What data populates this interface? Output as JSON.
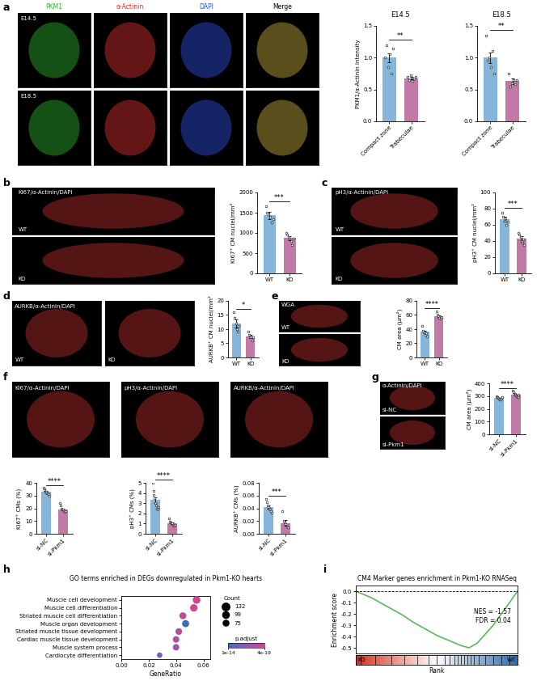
{
  "panel_labels": [
    "a",
    "b",
    "c",
    "d",
    "e",
    "f",
    "g",
    "h",
    "i"
  ],
  "images": [
    {
      "columns": [
        {
          "name": "PKM1",
          "color": "#2fb52f"
        },
        {
          "name": "α-Actinin",
          "color": "#e03030"
        },
        {
          "name": "DAPI",
          "color": "#3050e0"
        },
        {
          "name": "Merge",
          "color": "#000000"
        }
      ],
      "rows": [
        "E14.5",
        "E18.5"
      ]
    },
    {
      "stain": "Ki67/α-Actinin/DAPI",
      "rows": [
        "WT",
        "KO"
      ]
    },
    {
      "stain": "pH3/α-Actinin/DAPI",
      "rows": [
        "WT",
        "KO"
      ]
    },
    {
      "stain": "AURKB/α-Actinin/DAPI",
      "rows": [
        "WT",
        "KO"
      ]
    },
    {
      "stain": "WGA",
      "rows": [
        "WT",
        "KO"
      ]
    },
    {
      "stain": "Ki67/α-Actinin/DAPI"
    },
    {
      "stain": "pH3/α-Actinin/DAPI"
    },
    {
      "stain": "AURKB/α-Actinin/DAPI"
    },
    {
      "stain": "α-Actinin/DAPI",
      "rows": [
        "si-NC",
        "si-Pkm1"
      ]
    }
  ],
  "chart_data": [
    {
      "type": "bar",
      "title": "E14.5",
      "y_label": "PKM1/α-Actinin intensity",
      "categories": [
        "Compact zone",
        "Trabeculae"
      ],
      "values": [
        1.0,
        0.68
      ],
      "errors": [
        0.07,
        0.02
      ],
      "points": [
        [
          1.0,
          1.2,
          0.85,
          1.05,
          0.75,
          1.15
        ],
        [
          0.7,
          0.65,
          0.72,
          0.63,
          0.68,
          0.7
        ]
      ],
      "colors": [
        "#86b5db",
        "#c17aa6"
      ],
      "ylim": [
        0,
        1.5
      ],
      "yticks": [
        {
          "value": 0,
          "label": "0.0"
        },
        {
          "value": 0.5,
          "label": "0.5"
        },
        {
          "value": 1.0,
          "label": "1.0"
        },
        {
          "value": 1.5,
          "label": "1.5"
        }
      ],
      "significance": "**"
    },
    {
      "type": "bar",
      "title": "E18.5",
      "categories": [
        "Compact zone",
        "Trabeculae"
      ],
      "values": [
        1.0,
        0.63
      ],
      "errors": [
        0.08,
        0.04
      ],
      "points": [
        [
          1.35,
          0.95,
          1.0,
          0.85,
          1.1,
          0.75
        ],
        [
          0.75,
          0.55,
          0.6,
          0.65,
          0.58,
          0.65
        ]
      ],
      "colors": [
        "#86b5db",
        "#c17aa6"
      ],
      "ylim": [
        0,
        1.5
      ],
      "yticks": [
        {
          "value": 0,
          "label": "0.0"
        },
        {
          "value": 0.5,
          "label": "0.5"
        },
        {
          "value": 1.0,
          "label": "1.0"
        },
        {
          "value": 1.5,
          "label": "1.5"
        }
      ],
      "significance": "**"
    },
    {
      "type": "bar",
      "y_label": "Ki67⁺ CM nuclei/mm²",
      "categories": [
        "WT",
        "KO"
      ],
      "values": [
        1430,
        870
      ],
      "errors": [
        85,
        45
      ],
      "points": [
        [
          1650,
          1500,
          1450,
          1400,
          1250,
          1330
        ],
        [
          1000,
          950,
          900,
          850,
          800,
          700,
          850
        ]
      ],
      "colors": [
        "#86b5db",
        "#c17aa6"
      ],
      "ylim": [
        0,
        2000
      ],
      "yticks": [
        0,
        500,
        1000,
        1500,
        2000
      ],
      "significance": "***"
    },
    {
      "type": "bar",
      "y_label": "pH3⁺ CM nuclei/mm²",
      "categories": [
        "WT",
        "KO"
      ],
      "values": [
        67,
        43
      ],
      "errors": [
        3,
        2.5
      ],
      "points": [
        [
          75,
          70,
          65,
          68,
          60,
          64
        ],
        [
          50,
          48,
          45,
          40,
          38,
          42,
          35
        ]
      ],
      "colors": [
        "#86b5db",
        "#c17aa6"
      ],
      "ylim": [
        0,
        100
      ],
      "yticks": [
        0,
        20,
        40,
        60,
        80,
        100
      ],
      "significance": "***"
    },
    {
      "type": "bar",
      "y_label": "AURKB⁺ CM nuclei/mm²",
      "categories": [
        "WT",
        "KO"
      ],
      "values": [
        12,
        7.5
      ],
      "errors": [
        1.3,
        0.6
      ],
      "points": [
        [
          16,
          14,
          12,
          10,
          9,
          11
        ],
        [
          9,
          8,
          7.5,
          7,
          6,
          7
        ]
      ],
      "colors": [
        "#86b5db",
        "#c17aa6"
      ],
      "ylim": [
        0,
        20
      ],
      "yticks": [
        0,
        5,
        10,
        15,
        20
      ],
      "significance": "*"
    },
    {
      "type": "bar",
      "y_label": "CM area (μm²)",
      "categories": [
        "WT",
        "KO"
      ],
      "values": [
        36,
        58
      ],
      "errors": [
        2,
        1.8
      ],
      "points": [
        [
          45,
          38,
          35,
          32,
          34,
          30
        ],
        [
          65,
          60,
          58,
          56,
          55,
          57
        ]
      ],
      "colors": [
        "#86b5db",
        "#c17aa6"
      ],
      "ylim": [
        0,
        80
      ],
      "yticks": [
        0,
        20,
        40,
        60,
        80
      ],
      "significance": "****"
    },
    {
      "type": "bar",
      "y_label": "Ki67⁺ CMs (%)",
      "categories": [
        "si-NC",
        "si-Pkm1"
      ],
      "values": [
        33,
        19
      ],
      "errors": [
        0.6,
        0.8
      ],
      "points": [
        [
          36,
          35,
          34,
          33,
          33,
          32,
          32,
          31,
          30
        ],
        [
          24,
          22,
          20,
          19,
          19,
          18,
          17,
          18
        ]
      ],
      "colors": [
        "#86b5db",
        "#c17aa6"
      ],
      "ylim": [
        0,
        40
      ],
      "yticks": [
        0,
        10,
        20,
        30,
        40
      ],
      "significance": "****"
    },
    {
      "type": "bar",
      "y_label": "pH3⁺ CMs (%)",
      "categories": [
        "si-NC",
        "si-Pkm1"
      ],
      "values": [
        3.3,
        1.05
      ],
      "errors": [
        0.3,
        0.07
      ],
      "points": [
        [
          5.0,
          4.2,
          3.8,
          3.5,
          3.0,
          2.8,
          2.5,
          2.4,
          2.6
        ],
        [
          1.5,
          1.2,
          1.1,
          1.0,
          1.0,
          0.9,
          0.8,
          0.9
        ]
      ],
      "colors": [
        "#86b5db",
        "#c17aa6"
      ],
      "ylim": [
        0,
        5
      ],
      "yticks": [
        0,
        1,
        2,
        3,
        4,
        5
      ],
      "significance": "****"
    },
    {
      "type": "bar",
      "y_label": "AURKB⁺ CMs (%)",
      "categories": [
        "si-NC",
        "si-Pkm1"
      ],
      "values": [
        0.042,
        0.017
      ],
      "errors": [
        0.003,
        0.004
      ],
      "points": [
        [
          0.055,
          0.05,
          0.045,
          0.042,
          0.04,
          0.038,
          0.035,
          0.033
        ],
        [
          0.035,
          0.02,
          0.018,
          0.015,
          0.012,
          0.01
        ]
      ],
      "colors": [
        "#86b5db",
        "#c17aa6"
      ],
      "ylim": [
        0,
        0.08
      ],
      "yticks": [
        {
          "value": 0,
          "label": "0.00"
        },
        {
          "value": 0.02,
          "label": "0.02"
        },
        {
          "value": 0.04,
          "label": "0.04"
        },
        {
          "value": 0.06,
          "label": "0.06"
        },
        {
          "value": 0.08,
          "label": "0.08"
        }
      ],
      "significance": "***"
    },
    {
      "type": "bar",
      "y_label": "CM area (μm²)",
      "categories": [
        "si-NC",
        "si-Pkm1"
      ],
      "values": [
        285,
        310
      ],
      "errors": [
        3,
        4
      ],
      "points": [
        [
          300,
          295,
          290,
          285,
          280,
          275,
          270,
          288,
          292
        ],
        [
          340,
          330,
          320,
          315,
          310,
          305,
          300,
          295,
          290,
          312
        ]
      ],
      "colors": [
        "#86b5db",
        "#c17aa6"
      ],
      "ylim": [
        0,
        400
      ],
      "yticks": [
        0,
        100,
        200,
        300,
        400
      ],
      "significance": "****"
    },
    {
      "type": "scatter",
      "title": "GO terms enriched in DEGs downregulated in Pkm1-KO hearts",
      "x_label": "GeneRatio",
      "categories": [
        "Muscle cell development",
        "Muscle cell differentiation",
        "Striated muscle cell differentiation",
        "Muscle organ development",
        "Striated muscle tissue development",
        "Cardiac muscle tissue development",
        "Muscle system process",
        "Cardiocyte differentiation"
      ],
      "values": [
        0.055,
        0.053,
        0.045,
        0.047,
        0.042,
        0.04,
        0.04,
        0.028
      ],
      "counts": [
        132,
        127,
        108,
        113,
        101,
        96,
        96,
        67
      ],
      "p_adjust": [
        4e-19,
        6e-19,
        2e-18,
        1e-14,
        3e-18,
        5e-18,
        2e-17,
        3e-16
      ],
      "xlim": [
        0,
        0.065
      ],
      "xticks": [
        {
          "value": 0,
          "label": "0.00"
        },
        {
          "value": 0.02,
          "label": "0.02"
        },
        {
          "value": 0.04,
          "label": "0.04"
        },
        {
          "value": 0.06,
          "label": "0.06"
        }
      ],
      "size_legend": {
        "title": "Count",
        "values": [
          132,
          99,
          75
        ]
      },
      "color_legend": {
        "title": "p.adjust",
        "range": [
          4e-19,
          1e-14
        ],
        "ticks": [
          {
            "value": 1e-14,
            "label": "1e-14"
          },
          {
            "value": 4e-19,
            "label": "4e-19"
          }
        ]
      }
    },
    {
      "type": "line",
      "title": "CM4 Marker genes enrichment in Pkm1-KO RNASeq",
      "y_label": "Enrichment score",
      "x_label": "Rank",
      "x": [
        0,
        5,
        10,
        15,
        20,
        25,
        30,
        35,
        40,
        45,
        50,
        55,
        60,
        65,
        70,
        75,
        80,
        85,
        90,
        95,
        100
      ],
      "values": [
        0,
        -0.03,
        -0.06,
        -0.1,
        -0.14,
        -0.18,
        -0.22,
        -0.27,
        -0.31,
        -0.35,
        -0.39,
        -0.42,
        -0.45,
        -0.48,
        -0.5,
        -0.46,
        -0.38,
        -0.3,
        -0.2,
        -0.1,
        0
      ],
      "color": "#5cb85c",
      "reference_line": 0,
      "hits": [
        3,
        12,
        22,
        30,
        38,
        45,
        50,
        55,
        58,
        61,
        63,
        65,
        67,
        69,
        71,
        73,
        76,
        80,
        85,
        90,
        95
      ],
      "rank_labels": [
        "KO",
        "WT"
      ],
      "annotations": [
        "NES = -1.57",
        "FDR = 0.04"
      ],
      "xlim": [
        0,
        100
      ],
      "ylim": [
        -0.55,
        0.05
      ],
      "yticks": [
        {
          "value": 0,
          "label": "0.0"
        },
        {
          "value": -0.1,
          "label": "-0.1"
        },
        {
          "value": -0.2,
          "label": "-0.2"
        },
        {
          "value": -0.3,
          "label": "-0.3"
        },
        {
          "value": -0.4,
          "label": "-0.4"
        },
        {
          "value": -0.5,
          "label": "-0.5"
        }
      ],
      "tick_labels": "y"
    }
  ]
}
